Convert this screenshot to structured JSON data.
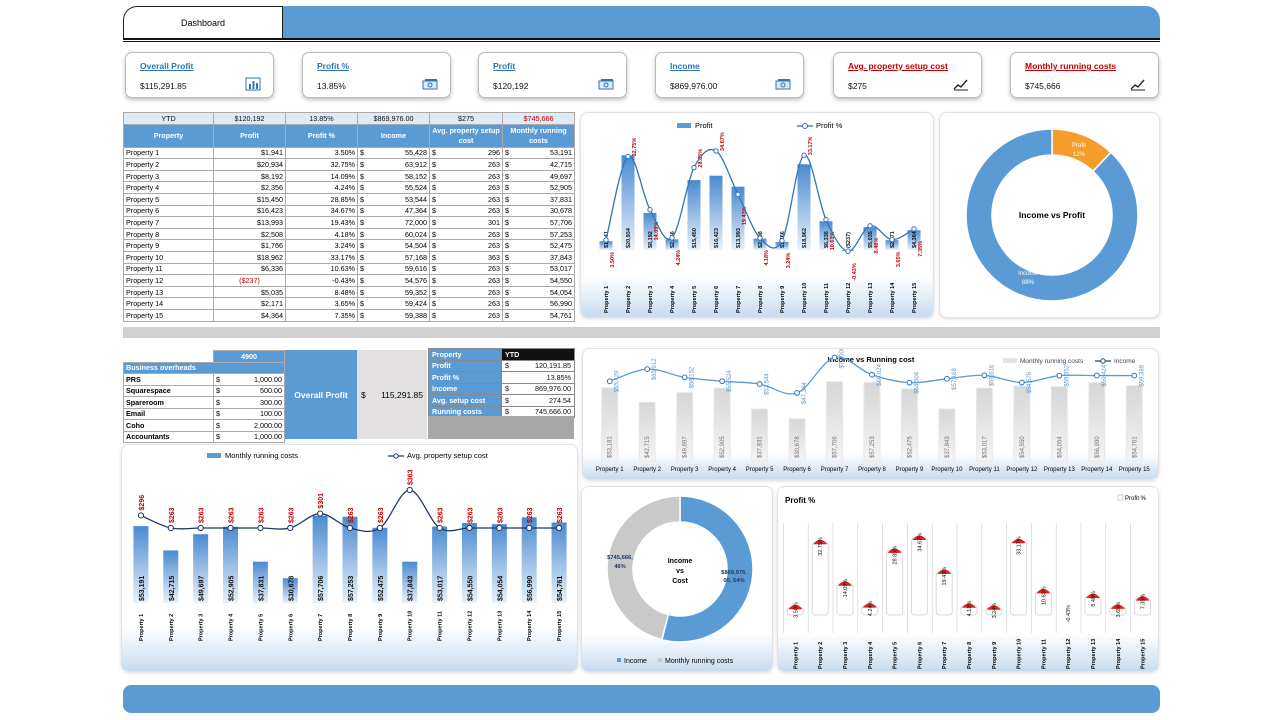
{
  "header": {
    "tab_label": "Dashboard"
  },
  "kpis": [
    {
      "title": "Overall Profit",
      "value": "$115,291.85",
      "icon": "bar-chart-icon",
      "red": false
    },
    {
      "title": "Profit %",
      "value": "13.85%",
      "icon": "money-icon",
      "red": false
    },
    {
      "title": "Profit",
      "value": "$120,192",
      "icon": "money-icon",
      "red": false
    },
    {
      "title": "Income",
      "value": "$869,976.00",
      "icon": "money-icon",
      "red": false
    },
    {
      "title": "Avg. property setup cost",
      "value": "$275",
      "icon": "line-chart-icon",
      "red": true
    },
    {
      "title": "Monthly running costs",
      "value": "$745,666",
      "icon": "line-chart-icon",
      "red": true
    }
  ],
  "ytd_row": {
    "label": "YTD",
    "profit": "$120,192",
    "profit_pct": "13.85%",
    "income": "$869,976.00",
    "avg_setup": "$275",
    "running": "$745,666"
  },
  "table_headers": [
    "Property",
    "Profit",
    "Profit %",
    "Income",
    "Avg. property setup cost",
    "Monthly running costs"
  ],
  "properties": [
    {
      "name": "Property 1",
      "profit": "$1,941",
      "pct": "3.50%",
      "income": "55,428",
      "setup": "296",
      "running": "53,191",
      "neg": false
    },
    {
      "name": "Property 2",
      "profit": "$20,934",
      "pct": "32.75%",
      "income": "63,912",
      "setup": "263",
      "running": "42,715",
      "neg": false
    },
    {
      "name": "Property 3",
      "profit": "$8,192",
      "pct": "14.09%",
      "income": "58,152",
      "setup": "263",
      "running": "49,697",
      "neg": false
    },
    {
      "name": "Property 4",
      "profit": "$2,356",
      "pct": "4.24%",
      "income": "55,524",
      "setup": "263",
      "running": "52,905",
      "neg": false
    },
    {
      "name": "Property 5",
      "profit": "$15,450",
      "pct": "28.85%",
      "income": "53,544",
      "setup": "263",
      "running": "37,831",
      "neg": false
    },
    {
      "name": "Property 6",
      "profit": "$16,423",
      "pct": "34.67%",
      "income": "47,364",
      "setup": "263",
      "running": "30,678",
      "neg": false
    },
    {
      "name": "Property 7",
      "profit": "$13,993",
      "pct": "19.43%",
      "income": "72,000",
      "setup": "301",
      "running": "57,706",
      "neg": false
    },
    {
      "name": "Property 8",
      "profit": "$2,508",
      "pct": "4.18%",
      "income": "60,024",
      "setup": "263",
      "running": "57,253",
      "neg": false
    },
    {
      "name": "Property 9",
      "profit": "$1,766",
      "pct": "3.24%",
      "income": "54,504",
      "setup": "263",
      "running": "52,475",
      "neg": false
    },
    {
      "name": "Property 10",
      "profit": "$18,962",
      "pct": "33.17%",
      "income": "57,168",
      "setup": "363",
      "running": "37,843",
      "neg": false
    },
    {
      "name": "Property 11",
      "profit": "$6,336",
      "pct": "10.63%",
      "income": "59,616",
      "setup": "263",
      "running": "53,017",
      "neg": false
    },
    {
      "name": "Property 12",
      "profit": "($237)",
      "pct": "-0.43%",
      "income": "54,576",
      "setup": "263",
      "running": "54,550",
      "neg": true
    },
    {
      "name": "Property 13",
      "profit": "$5,035",
      "pct": "8.48%",
      "income": "59,352",
      "setup": "263",
      "running": "54,054",
      "neg": false
    },
    {
      "name": "Property 14",
      "profit": "$2,171",
      "pct": "3.65%",
      "income": "59,424",
      "setup": "263",
      "running": "56,990",
      "neg": false
    },
    {
      "name": "Property 15",
      "profit": "$4,364",
      "pct": "7.35%",
      "income": "59,388",
      "setup": "263",
      "running": "54,761",
      "neg": false
    }
  ],
  "overheads": {
    "total": "4900",
    "title": "Business overheads",
    "items": [
      {
        "name": "PRS",
        "value": "1,000.00"
      },
      {
        "name": "Squarespace",
        "value": "500.00"
      },
      {
        "name": "Spareroom",
        "value": "300.00"
      },
      {
        "name": "Email",
        "value": "100.00"
      },
      {
        "name": "Coho",
        "value": "2,000.00"
      },
      {
        "name": "Accountants",
        "value": "1,000.00"
      }
    ]
  },
  "overall_profit": {
    "label": "Overall Profit",
    "currency": "$",
    "value": "115,291.85"
  },
  "property_summary": {
    "col1": "Property",
    "col2": "YTD",
    "rows": [
      {
        "label": "Profit",
        "value": "120,191.85",
        "dollar": true
      },
      {
        "label": "Profit %",
        "value": "13.85%",
        "dollar": false
      },
      {
        "label": "Income",
        "value": "869,976.00",
        "dollar": true
      },
      {
        "label": "Avg.  setup cost",
        "value": "274.54",
        "dollar": true
      },
      {
        "label": "Running costs",
        "value": "745,666.00",
        "dollar": true
      }
    ]
  },
  "accent": "#5b9bd5",
  "red": "#c00000",
  "chart_data": [
    {
      "id": "profit-combo",
      "type": "bar",
      "categories": [
        "Property 1",
        "Property 2",
        "Property 3",
        "Property 4",
        "Property 5",
        "Property 6",
        "Property 7",
        "Property 8",
        "Property 9",
        "Property 10",
        "Property 11",
        "Property 12",
        "Property 13",
        "Property 14",
        "Property 15"
      ],
      "series": [
        {
          "name": "Profit",
          "type": "bar",
          "values": [
            1941,
            20934,
            8192,
            2356,
            15450,
            16423,
            13993,
            2508,
            1766,
            18962,
            6336,
            -237,
            5035,
            2171,
            4364
          ],
          "labels": [
            "$1,941",
            "$20,934",
            "$8,192",
            "$2,356",
            "$15,450",
            "$16,423",
            "$13,993",
            "$2,508",
            "$1,766",
            "$18,962",
            "$6,336",
            "($237)",
            "$5,035",
            "$2,171",
            "$4,364"
          ]
        },
        {
          "name": "Profit %",
          "type": "line",
          "values": [
            3.5,
            32.75,
            14.09,
            4.24,
            28.85,
            34.67,
            19.43,
            4.18,
            3.24,
            33.17,
            10.63,
            -0.43,
            8.48,
            3.65,
            7.35
          ],
          "labels": [
            "3.50%",
            "32.75%",
            "14.09%",
            "4.24%",
            "28.85%",
            "34.67%",
            "19.43%",
            "4.18%",
            "3.24%",
            "33.17%",
            "10.63%",
            "-0.43%",
            "8.48%",
            "3.65%",
            "7.35%"
          ]
        }
      ],
      "legend": "top"
    },
    {
      "id": "income-vs-profit",
      "type": "pie",
      "title": "Income vs Profit",
      "slices": [
        {
          "name": "Income",
          "value": 88,
          "label": "88%"
        },
        {
          "name": "Profit",
          "value": 12,
          "label": "12%"
        }
      ]
    },
    {
      "id": "income-vs-running",
      "type": "bar",
      "title": "Income vs Running cost",
      "categories": [
        "Property 1",
        "Property 2",
        "Property 3",
        "Property 4",
        "Property 5",
        "Property 6",
        "Property 7",
        "Property 8",
        "Property 9",
        "Property 10",
        "Property 11",
        "Property 12",
        "Property 13",
        "Property 14",
        "Property 15"
      ],
      "series": [
        {
          "name": "Monthly running costs",
          "type": "bar",
          "values": [
            53191,
            42715,
            49697,
            52905,
            37831,
            30678,
            57706,
            57253,
            52475,
            37843,
            53017,
            54550,
            54054,
            56990,
            54761
          ],
          "labels": [
            "$53,191",
            "$42,715",
            "$49,697",
            "$52,905",
            "$37,831",
            "$30,678",
            "$57,706",
            "$57,253",
            "$52,475",
            "$37,843",
            "$53,017",
            "$54,550",
            "$54,054",
            "$56,990",
            "$54,761"
          ]
        },
        {
          "name": "Income",
          "type": "line",
          "values": [
            55428,
            63912,
            58152,
            55524,
            53544,
            47364,
            72000,
            60024,
            54504,
            57168,
            59616,
            54576,
            59352,
            59424,
            59388
          ],
          "labels": [
            "$55,428",
            "$63,912",
            "$58,152",
            "$55,524",
            "$53,544",
            "$47,364",
            "$72,000",
            "$60,024",
            "$54,504",
            "$57,168",
            "$59,616",
            "$54,576",
            "$59,352",
            "$59,424",
            "$59,388"
          ]
        }
      ],
      "legend": "top-right"
    },
    {
      "id": "running-vs-setup",
      "type": "bar",
      "categories": [
        "Property 1",
        "Property 2",
        "Property 3",
        "Property 4",
        "Property 5",
        "Property 6",
        "Property 7",
        "Property 8",
        "Property 9",
        "Property 10",
        "Property 11",
        "Property 12",
        "Property 13",
        "Property 14",
        "Property 15"
      ],
      "series": [
        {
          "name": "Monthly running costs",
          "type": "bar",
          "values": [
            53191,
            42715,
            49697,
            52905,
            37831,
            30678,
            57706,
            57253,
            52475,
            37843,
            53017,
            54550,
            54054,
            56990,
            54761
          ],
          "labels": [
            "$53,191",
            "$42,715",
            "$49,697",
            "$52,905",
            "$37,831",
            "$30,678",
            "$57,706",
            "$57,253",
            "$52,475",
            "$37,843",
            "$53,017",
            "$54,550",
            "$54,054",
            "$56,990",
            "$54,761"
          ]
        },
        {
          "name": "Avg. property setup cost",
          "type": "line",
          "values": [
            296,
            263,
            263,
            263,
            263,
            263,
            301,
            263,
            263,
            363,
            263,
            263,
            263,
            263,
            263
          ],
          "labels": [
            "$296",
            "$263",
            "$263",
            "$263",
            "$263",
            "$263",
            "$301",
            "$263",
            "$263",
            "$363",
            "$263",
            "$263",
            "$263",
            "$263",
            "$263"
          ]
        }
      ],
      "legend": "top"
    },
    {
      "id": "income-vs-cost",
      "type": "pie",
      "title": "Income vs Cost",
      "title_lines": [
        "Income",
        "vs",
        "Cost"
      ],
      "slices": [
        {
          "name": "Income",
          "value": 54,
          "label1": "$869,976.",
          "label2": "00, 54%"
        },
        {
          "name": "Monthly running costs",
          "value": 46,
          "label1": "$745,666,",
          "label2": "46%"
        }
      ],
      "legend": "bottom"
    },
    {
      "id": "profit-pct",
      "type": "bar",
      "title": "Profit %",
      "categories": [
        "Property 1",
        "Property 2",
        "Property 3",
        "Property 4",
        "Property 5",
        "Property 6",
        "Property 7",
        "Property 8",
        "Property 9",
        "Property 10",
        "Property 11",
        "Property 12",
        "Property 13",
        "Property 14",
        "Property 15"
      ],
      "series": [
        {
          "name": "Profit %",
          "values": [
            3.5,
            32.75,
            14.09,
            4.24,
            28.85,
            34.67,
            19.43,
            4.18,
            3.24,
            33.17,
            10.63,
            -0.43,
            8.48,
            3.65,
            7.35
          ],
          "labels": [
            "3.50%",
            "32.75%",
            "14.09%",
            "4.24%",
            "28.85%",
            "34.67%",
            "19.43%",
            "4.18%",
            "3.24%",
            "33.17%",
            "10.63%",
            "-0.43%",
            "8.48%",
            "3.65%",
            "7.35%"
          ]
        }
      ],
      "legend": "top-right"
    }
  ]
}
